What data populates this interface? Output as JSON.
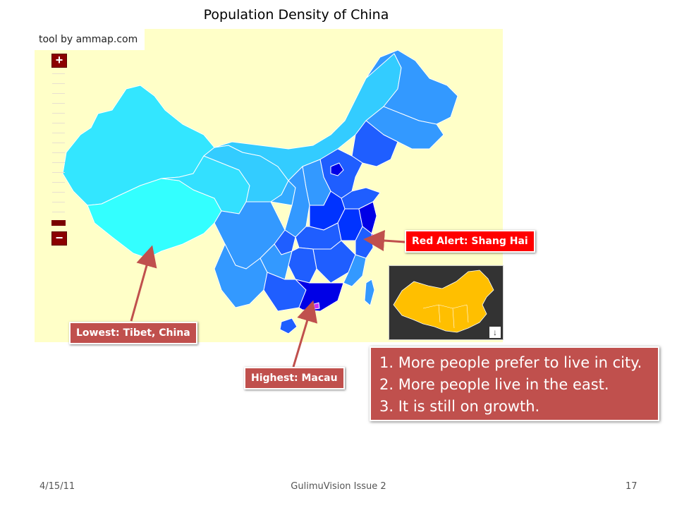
{
  "slide": {
    "title": "Population Density of China",
    "date": "4/15/11",
    "footer_center": "GulimuVision Issue 2",
    "page_number": "17"
  },
  "map": {
    "credit": "tool by ammap.com",
    "zoom_in_label": "+",
    "zoom_out_label": "−",
    "colors": {
      "background": "#ffffc8",
      "lightest": "#33ffff",
      "light": "#33ccff",
      "medium": "#3399ff",
      "dark": "#1f5eff",
      "darker": "#0033ff",
      "darkest": "#0000e6",
      "highlight": "#cc33ff"
    }
  },
  "annotations": {
    "red_alert": "Red Alert: Shang Hai",
    "lowest": "Lowest: Tibet, China",
    "highest": "Highest: Macau"
  },
  "facts": [
    "1. More people prefer to live in city.",
    "2. More people live in the east.",
    "3. It is still on growth."
  ],
  "inset": {
    "icon": "download-arrow-icon",
    "map_color": "#ffbf00"
  }
}
